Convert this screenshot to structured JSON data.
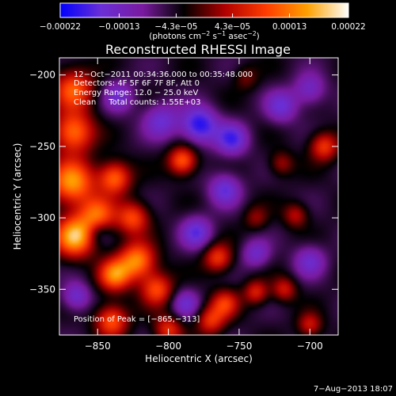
{
  "chart_data": {
    "type": "heatmap",
    "title": "Reconstructed RHESSI Image",
    "xlabel": "Heliocentric X (arcsec)",
    "ylabel": "Heliocentric Y (arcsec)",
    "xlim": [
      -877,
      -680
    ],
    "ylim": [
      -382,
      -188
    ],
    "x_ticks": [
      -850,
      -800,
      -750,
      -700
    ],
    "x_tick_labels": [
      "−850",
      "−800",
      "−750",
      "−700"
    ],
    "y_ticks": [
      -200,
      -250,
      -300,
      -350
    ],
    "y_tick_labels": [
      "−200",
      "−250",
      "−300",
      "−350"
    ],
    "colorbar": {
      "range": [
        -0.00022,
        0.00022
      ],
      "ticks": [
        -0.00022,
        -0.00013,
        -4.3e-05,
        4.3e-05,
        0.00013,
        0.00022
      ],
      "tick_labels": [
        "−0.00022",
        "−0.00013",
        "−4.3e−05",
        "4.3e−05",
        "0.00013",
        "0.00022"
      ],
      "units_text": "(photons cm",
      "units_exp1": "−2",
      "units_mid": " s",
      "units_exp2": "−1",
      "units_end": " asec",
      "units_exp3": "−2",
      "units_close": ")",
      "colors": [
        "#0000ff",
        "#6a2fd6",
        "#7a1aa0",
        "#000000",
        "#b00000",
        "#ff3c00",
        "#ffa000",
        "#ffffff"
      ]
    },
    "annotations": {
      "time_range": "12−Oct−2011 00:34:36.000 to 00:35:48.000",
      "detectors": "Detectors: 4F 5F 6F 7F 8F, Att 0",
      "energy_range": "Energy Range: 12.0 − 25.0 keV",
      "method_counts": "Clean     Total counts: 1.55E+03",
      "peak": "Position of Peak = [−865,−313]"
    },
    "peak_position": [
      -865,
      -313
    ],
    "sources": [
      {
        "x": -866,
        "y": -313,
        "amp": 1.0,
        "s": 10
      },
      {
        "x": -868,
        "y": -275,
        "amp": 0.9,
        "s": 11
      },
      {
        "x": -867,
        "y": -240,
        "amp": 0.8,
        "s": 10
      },
      {
        "x": -867,
        "y": -210,
        "amp": 0.7,
        "s": 10
      },
      {
        "x": -838,
        "y": -272,
        "amp": 0.75,
        "s": 8
      },
      {
        "x": -850,
        "y": -298,
        "amp": 0.7,
        "s": 9
      },
      {
        "x": -825,
        "y": -300,
        "amp": 0.65,
        "s": 8
      },
      {
        "x": -822,
        "y": -330,
        "amp": 0.85,
        "s": 9
      },
      {
        "x": -838,
        "y": -340,
        "amp": 0.8,
        "s": 8
      },
      {
        "x": -808,
        "y": -350,
        "amp": 0.65,
        "s": 8
      },
      {
        "x": -840,
        "y": -372,
        "amp": 0.7,
        "s": 8
      },
      {
        "x": -800,
        "y": -378,
        "amp": 0.55,
        "s": 7
      },
      {
        "x": -790,
        "y": -260,
        "amp": 0.75,
        "s": 7
      },
      {
        "x": -765,
        "y": -328,
        "amp": 0.6,
        "s": 7
      },
      {
        "x": -760,
        "y": -360,
        "amp": 0.55,
        "s": 7
      },
      {
        "x": -770,
        "y": -372,
        "amp": 0.55,
        "s": 7
      },
      {
        "x": -738,
        "y": -352,
        "amp": 0.5,
        "s": 6
      },
      {
        "x": -718,
        "y": -350,
        "amp": 0.45,
        "s": 6
      },
      {
        "x": -690,
        "y": -250,
        "amp": 0.6,
        "s": 7
      },
      {
        "x": -720,
        "y": -262,
        "amp": 0.35,
        "s": 6
      },
      {
        "x": -745,
        "y": -202,
        "amp": 0.25,
        "s": 6
      },
      {
        "x": -738,
        "y": -300,
        "amp": 0.3,
        "s": 6
      },
      {
        "x": -710,
        "y": -298,
        "amp": 0.4,
        "s": 6
      },
      {
        "x": -700,
        "y": -375,
        "amp": 0.45,
        "s": 6
      },
      {
        "x": -778,
        "y": -235,
        "amp": -0.7,
        "s": 9
      },
      {
        "x": -755,
        "y": -245,
        "amp": -0.55,
        "s": 8
      },
      {
        "x": -760,
        "y": -280,
        "amp": -0.5,
        "s": 8
      },
      {
        "x": -805,
        "y": -232,
        "amp": -0.45,
        "s": 9
      },
      {
        "x": -720,
        "y": -222,
        "amp": -0.45,
        "s": 8
      },
      {
        "x": -835,
        "y": -215,
        "amp": -0.4,
        "s": 8
      },
      {
        "x": -780,
        "y": -310,
        "amp": -0.5,
        "s": 8
      },
      {
        "x": -788,
        "y": -360,
        "amp": -0.4,
        "s": 7
      },
      {
        "x": -738,
        "y": -325,
        "amp": -0.4,
        "s": 7
      },
      {
        "x": -700,
        "y": -330,
        "amp": -0.4,
        "s": 8
      },
      {
        "x": -700,
        "y": -210,
        "amp": -0.4,
        "s": 8
      },
      {
        "x": -865,
        "y": -355,
        "amp": -0.45,
        "s": 7
      },
      {
        "x": -850,
        "y": -310,
        "amp": -0.3,
        "s": 6
      }
    ]
  },
  "footer": {
    "date": "7−Aug−2013 18:07"
  }
}
